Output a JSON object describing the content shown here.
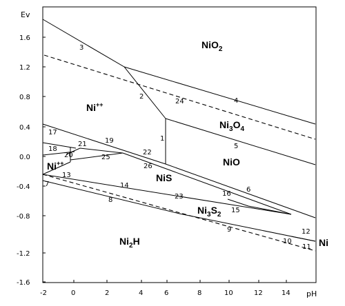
{
  "axes": {
    "y_title": "Ev",
    "x_title": "pH",
    "y_ticks": [
      "1.6",
      "1.2",
      "0.8",
      "0.4",
      "0.0",
      "-0.4",
      "-0.8",
      "-1.2",
      "-1.6"
    ],
    "x_ticks": [
      "-2",
      "0",
      "2",
      "4",
      "6",
      "8",
      "10",
      "12",
      "14"
    ]
  },
  "regions": {
    "nio2": {
      "base": "NiO",
      "sub": "2",
      "rest": ""
    },
    "ni_pp_top": {
      "base": "Ni",
      "sup": "++"
    },
    "ni3o4": {
      "base": "Ni",
      "sub1": "3",
      "mid": "O",
      "sub2": "4"
    },
    "nio": "NiO",
    "nis": "NiS",
    "ni_pp_left": {
      "base": "Ni",
      "sup": "++"
    },
    "ni3s2": {
      "base": "Ni",
      "sub1": "3",
      "mid": "S",
      "sub2": "2"
    },
    "ni2h": {
      "base": "Ni",
      "sub": "2",
      "rest": "H"
    },
    "ni": "Ni"
  },
  "line_numbers": {
    "n1": "1",
    "n2": "2",
    "n3": "3",
    "n4": "4",
    "n5": "5",
    "n6": "6",
    "n7": "7",
    "n8": "8",
    "n9": "9",
    "n10": "10",
    "n11": "11",
    "n12": "12",
    "n13": "13",
    "n14": "14",
    "n15": "15",
    "n16": "16",
    "n17": "17",
    "n18": "18",
    "n19": "19",
    "n20": "20",
    "n21": "21",
    "n22": "22",
    "n23": "23",
    "n24": "24",
    "n25": "25",
    "n26": "26"
  }
}
